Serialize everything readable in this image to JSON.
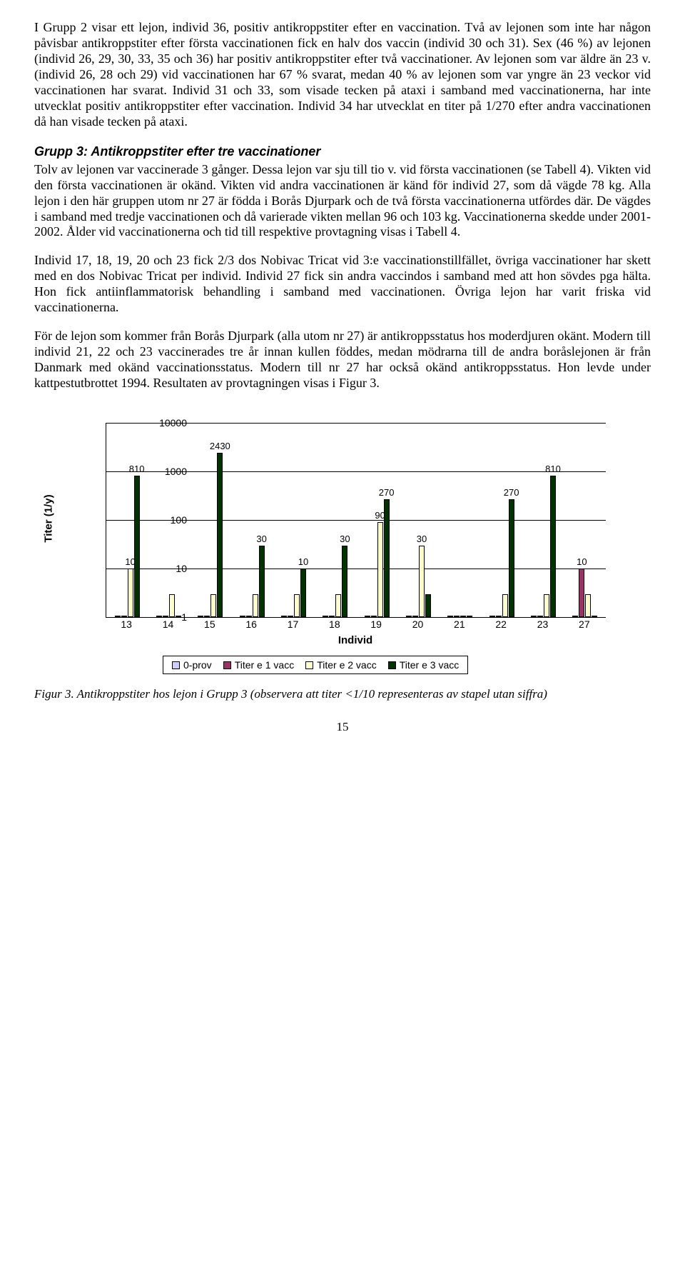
{
  "para1": "I Grupp 2 visar ett lejon, individ 36, positiv antikroppstiter efter en vaccination. Två av lejonen som inte har någon påvisbar antikroppstiter efter första vaccinationen fick en halv dos vaccin (individ 30 och 31). Sex (46 %) av lejonen (individ 26, 29, 30, 33, 35 och 36) har positiv antikroppstiter efter två vaccinationer. Av lejonen som var äldre än 23 v. (individ 26, 28 och 29) vid vaccinationen har 67 % svarat, medan 40 % av lejonen som var yngre än 23 veckor vid vaccinationen har svarat. Individ 31 och 33, som visade tecken på ataxi i samband med vaccinationerna, har inte utvecklat positiv antikroppstiter efter vaccination. Individ 34 har utvecklat en titer på 1/270 efter andra vaccinationen då han visade tecken på ataxi.",
  "heading": "Grupp 3: Antikroppstiter efter tre vaccinationer",
  "para2": "Tolv av lejonen var vaccinerade 3 gånger. Dessa lejon var sju till tio v. vid första vaccinationen (se Tabell 4). Vikten vid den första vaccinationen är okänd. Vikten vid andra vaccinationen är känd för individ 27, som då vägde 78 kg. Alla lejon i den här gruppen utom nr 27 är födda i Borås Djurpark och de två första vaccinationerna utfördes där. De vägdes i samband med tredje vaccinationen och då varierade vikten mellan 96 och 103 kg. Vaccinationerna skedde under 2001-2002. Ålder vid vaccinationerna och tid till respektive provtagning visas i Tabell 4.",
  "para3": "Individ 17, 18, 19, 20 och 23 fick 2/3 dos Nobivac Tricat vid 3:e vaccinationstillfället, övriga vaccinationer har skett med en dos Nobivac Tricat per individ. Individ 27 fick sin andra vaccindos i samband med att hon sövdes pga hälta. Hon fick antiinflammatorisk behandling i samband med vaccinationen. Övriga lejon har varit friska vid vaccinationerna.",
  "para4": "För de lejon som kommer från Borås Djurpark (alla utom nr 27) är antikroppsstatus hos moderdjuren okänt. Modern till individ 21, 22 och 23 vaccinerades tre år innan kullen föddes, medan mödrarna till de andra boråslejonen är från Danmark med okänd vaccinationsstatus. Modern till nr 27 har också okänd antikroppsstatus. Hon levde under kattpestutbrottet 1994. Resultaten av provtagningen visas i Figur 3.",
  "chart": {
    "type": "bar",
    "ylabel": "Titer (1/y)",
    "xlabel": "Individ",
    "yscale": "log",
    "ylim": [
      1,
      10000
    ],
    "yticks": [
      1,
      10,
      100,
      1000,
      10000
    ],
    "categories": [
      "13",
      "14",
      "15",
      "16",
      "17",
      "18",
      "19",
      "20",
      "21",
      "22",
      "23",
      "27"
    ],
    "series": [
      {
        "name": "0-prov",
        "color": "#ccccff"
      },
      {
        "name": "Titer e 1 vacc",
        "color": "#993366"
      },
      {
        "name": "Titer e 2 vacc",
        "color": "#ffffcc"
      },
      {
        "name": "Titer e 3 vacc",
        "color": "#003300"
      }
    ],
    "values": {
      "13": [
        1,
        1,
        10,
        810
      ],
      "14": [
        1,
        1,
        3,
        1
      ],
      "15": [
        1,
        1,
        3,
        2430
      ],
      "16": [
        1,
        1,
        3,
        30
      ],
      "17": [
        1,
        1,
        3,
        10
      ],
      "18": [
        1,
        1,
        3,
        30
      ],
      "19": [
        1,
        1,
        90,
        270
      ],
      "20": [
        1,
        1,
        30,
        3
      ],
      "21": [
        1,
        1,
        1,
        1
      ],
      "22": [
        1,
        1,
        3,
        270
      ],
      "23": [
        1,
        1,
        3,
        810
      ],
      "27": [
        1,
        10,
        3,
        1
      ]
    },
    "bar_labels": {
      "13": {
        "2": "10",
        "3": "810"
      },
      "15": {
        "3": "2430"
      },
      "16": {
        "3": "30"
      },
      "17": {
        "3": "10"
      },
      "18": {
        "3": "30"
      },
      "19": {
        "2": "90",
        "3": "270"
      },
      "20": {
        "2": "30"
      },
      "22": {
        "3": "270"
      },
      "23": {
        "3": "810"
      },
      "27": {
        "1": "10"
      }
    },
    "legend_labels": [
      "0-prov",
      "Titer e 1 vacc",
      "Titer e 2 vacc",
      "Titer e 3 vacc"
    ],
    "grid_color": "#000000",
    "background_color": "#ffffff",
    "tick_fontsize": 14,
    "label_fontsize": 15
  },
  "caption": "Figur 3. Antikroppstiter hos lejon i Grupp 3 (observera att titer <1/10 representeras av stapel utan siffra)",
  "pagenum": "15"
}
